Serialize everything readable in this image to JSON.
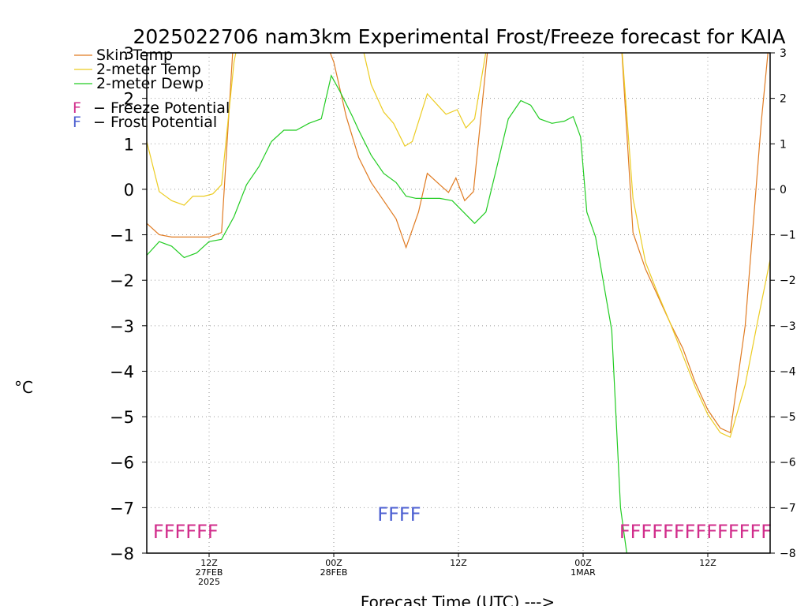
{
  "chart_data": {
    "type": "line",
    "title": "2025022706 nam3km Experimental Frost/Freeze forecast for KAIA",
    "ylabel": "°C",
    "xlabel": "Forecast Time (UTC) --->",
    "ylim": [
      -8,
      3
    ],
    "yticks": [
      -8,
      -7,
      -6,
      -5,
      -4,
      -3,
      -2,
      -1,
      0,
      1,
      2,
      3
    ],
    "xlim": [
      7,
      57
    ],
    "xtick_labels": [
      {
        "x": 12,
        "lines": [
          "12Z",
          "27FEB",
          "2025"
        ]
      },
      {
        "x": 22,
        "lines": [
          "00Z",
          "28FEB"
        ]
      },
      {
        "x": 32,
        "lines": [
          "12Z"
        ]
      },
      {
        "x": 42,
        "lines": [
          "00Z",
          "1MAR"
        ]
      },
      {
        "x": 52,
        "lines": [
          "12Z"
        ]
      }
    ],
    "grid": true,
    "legend_position": "top-left",
    "series": [
      {
        "name": "Skin Temp",
        "color": "#e07b22",
        "points": [
          [
            7,
            -0.75
          ],
          [
            8,
            -1.0
          ],
          [
            9,
            -1.05
          ],
          [
            10,
            -1.05
          ],
          [
            11,
            -1.05
          ],
          [
            12,
            -1.05
          ],
          [
            13,
            -0.95
          ],
          [
            14,
            3.5
          ],
          [
            21,
            3.5
          ],
          [
            22,
            2.8
          ],
          [
            23,
            1.6
          ],
          [
            24,
            0.7
          ],
          [
            25,
            0.15
          ],
          [
            26,
            -0.25
          ],
          [
            27,
            -0.65
          ],
          [
            27.8,
            -1.28
          ],
          [
            28.8,
            -0.5
          ],
          [
            29.5,
            0.35
          ],
          [
            30.5,
            0.1
          ],
          [
            31.2,
            -0.07
          ],
          [
            31.8,
            0.25
          ],
          [
            32.5,
            -0.25
          ],
          [
            33.2,
            -0.05
          ],
          [
            34.5,
            3.5
          ],
          [
            45,
            3.5
          ],
          [
            46,
            -0.95
          ],
          [
            47,
            -1.75
          ],
          [
            48,
            -2.35
          ],
          [
            49,
            -2.95
          ],
          [
            50,
            -3.5
          ],
          [
            51,
            -4.25
          ],
          [
            52,
            -4.85
          ],
          [
            53,
            -5.25
          ],
          [
            53.8,
            -5.35
          ],
          [
            55,
            -3.0
          ],
          [
            56.3,
            1.5
          ],
          [
            57,
            3.5
          ]
        ]
      },
      {
        "name": "2-meter Temp",
        "color": "#eccc22",
        "points": [
          [
            7,
            1.05
          ],
          [
            8,
            -0.05
          ],
          [
            9,
            -0.25
          ],
          [
            10,
            -0.35
          ],
          [
            10.7,
            -0.15
          ],
          [
            11.6,
            -0.15
          ],
          [
            12.3,
            -0.1
          ],
          [
            13,
            0.1
          ],
          [
            14,
            2.8
          ],
          [
            14.5,
            3.5
          ],
          [
            24,
            3.5
          ],
          [
            25,
            2.3
          ],
          [
            26,
            1.7
          ],
          [
            26.8,
            1.45
          ],
          [
            27.7,
            0.95
          ],
          [
            28.3,
            1.05
          ],
          [
            29.5,
            2.1
          ],
          [
            30.5,
            1.8
          ],
          [
            31,
            1.65
          ],
          [
            31.9,
            1.75
          ],
          [
            32.6,
            1.35
          ],
          [
            33.3,
            1.55
          ],
          [
            34.5,
            3.5
          ],
          [
            45,
            3.5
          ],
          [
            46,
            -0.2
          ],
          [
            47,
            -1.6
          ],
          [
            48,
            -2.3
          ],
          [
            49,
            -2.95
          ],
          [
            50,
            -3.65
          ],
          [
            51,
            -4.35
          ],
          [
            52,
            -4.95
          ],
          [
            53,
            -5.35
          ],
          [
            53.8,
            -5.45
          ],
          [
            55,
            -4.3
          ],
          [
            56,
            -2.9
          ],
          [
            57,
            -1.55
          ]
        ]
      },
      {
        "name": "2-meter Dewp",
        "color": "#22cc22",
        "points": [
          [
            7,
            -1.45
          ],
          [
            8,
            -1.15
          ],
          [
            9,
            -1.25
          ],
          [
            10,
            -1.5
          ],
          [
            11,
            -1.4
          ],
          [
            12,
            -1.15
          ],
          [
            13,
            -1.1
          ],
          [
            14,
            -0.6
          ],
          [
            15,
            0.1
          ],
          [
            16,
            0.5
          ],
          [
            17,
            1.05
          ],
          [
            18,
            1.3
          ],
          [
            19,
            1.3
          ],
          [
            20,
            1.45
          ],
          [
            21,
            1.55
          ],
          [
            21.8,
            2.5
          ],
          [
            22.5,
            2.15
          ],
          [
            23.5,
            1.6
          ],
          [
            24,
            1.3
          ],
          [
            25,
            0.75
          ],
          [
            26,
            0.35
          ],
          [
            27,
            0.15
          ],
          [
            27.8,
            -0.15
          ],
          [
            28.6,
            -0.2
          ],
          [
            29.5,
            -0.2
          ],
          [
            30.5,
            -0.2
          ],
          [
            31.5,
            -0.25
          ],
          [
            32.4,
            -0.5
          ],
          [
            33.3,
            -0.75
          ],
          [
            34.2,
            -0.5
          ],
          [
            35,
            0.4
          ],
          [
            36,
            1.55
          ],
          [
            37,
            1.95
          ],
          [
            37.8,
            1.85
          ],
          [
            38.5,
            1.55
          ],
          [
            39.5,
            1.45
          ],
          [
            40.5,
            1.5
          ],
          [
            41.2,
            1.6
          ],
          [
            41.8,
            1.15
          ],
          [
            42.3,
            -0.5
          ],
          [
            43,
            -1.05
          ],
          [
            44.3,
            -3.1
          ],
          [
            45,
            -7.0
          ],
          [
            45.5,
            -8.0
          ]
        ]
      }
    ],
    "freeze_potential": [
      {
        "x": 7.5,
        "text": "FFFFFF"
      },
      {
        "x": 44.9,
        "text": "FFFFFFFFFFFFFF"
      }
    ],
    "frost_potential": [
      {
        "x": 25.5,
        "text": "FFFF"
      }
    ],
    "annotations": {
      "freeze_label": "Freeze Potential",
      "frost_label": "Frost Potential",
      "marker_letter": "F",
      "freeze_color": "#d12d8b",
      "frost_color": "#4c5fd1"
    }
  }
}
